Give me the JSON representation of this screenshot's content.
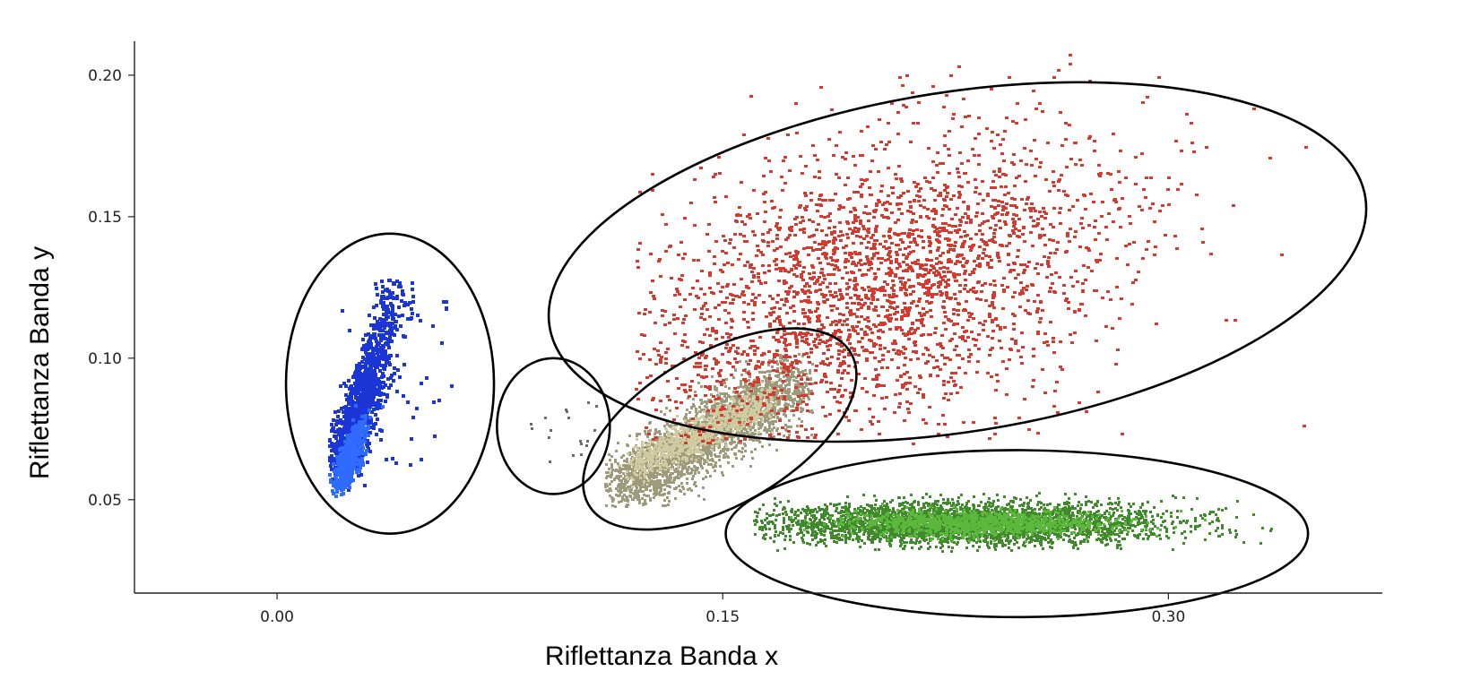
{
  "chart_data": {
    "type": "scatter",
    "title": "",
    "xlabel": "Riflettanza Banda x",
    "ylabel": "Riflettanza Banda y",
    "xlim": [
      -0.048,
      0.372
    ],
    "ylim": [
      0.017,
      0.212
    ],
    "x_ticks": [
      {
        "value": 0.0,
        "label": "0.00"
      },
      {
        "value": 0.15,
        "label": "0.15"
      },
      {
        "value": 0.3,
        "label": "0.30"
      }
    ],
    "y_ticks": [
      {
        "value": 0.05,
        "label": "0.05"
      },
      {
        "value": 0.1,
        "label": "0.10"
      },
      {
        "value": 0.15,
        "label": "0.15"
      },
      {
        "value": 0.2,
        "label": "0.20"
      }
    ],
    "grid": false,
    "legend": "none",
    "series": [
      {
        "color": "#1c36d6",
        "core_color": "#2f6bff",
        "approx_center": [
          0.028,
          0.082
        ],
        "x_range": [
          0.017,
          0.063
        ],
        "y_range": [
          0.051,
          0.129
        ],
        "approx_points": 1400
      },
      {
        "color": "#6a6a6a",
        "approx_center": [
          0.092,
          0.079
        ],
        "x_range": [
          0.085,
          0.108
        ],
        "y_range": [
          0.062,
          0.088
        ],
        "approx_points": 18
      },
      {
        "color": "#9e9a7c",
        "core_color": "#cfcaa0",
        "approx_center": [
          0.135,
          0.075
        ],
        "x_range": [
          0.11,
          0.18
        ],
        "y_range": [
          0.048,
          0.102
        ],
        "approx_points": 2600
      },
      {
        "color": "#d63a2e",
        "approx_center": [
          0.2,
          0.125
        ],
        "x_range": [
          0.12,
          0.36
        ],
        "y_range": [
          0.07,
          0.211
        ],
        "approx_points": 2800
      },
      {
        "color": "#3f8a2a",
        "core_color": "#5cb83c",
        "approx_center": [
          0.23,
          0.042
        ],
        "x_range": [
          0.16,
          0.335
        ],
        "y_range": [
          0.032,
          0.053
        ],
        "approx_points": 3200
      }
    ],
    "annotations": [
      {
        "shape": "ellipse",
        "cx": 0.038,
        "cy": 0.091,
        "rx": 0.035,
        "ry": 0.053,
        "rotate_deg": 0
      },
      {
        "shape": "ellipse",
        "cx": 0.093,
        "cy": 0.076,
        "rx": 0.019,
        "ry": 0.024,
        "rotate_deg": 0
      },
      {
        "shape": "ellipse",
        "cx": 0.149,
        "cy": 0.075,
        "rx": 0.051,
        "ry": 0.027,
        "rotate_deg": -30
      },
      {
        "shape": "ellipse",
        "cx": 0.229,
        "cy": 0.134,
        "rx": 0.139,
        "ry": 0.06,
        "rotate_deg": -9
      },
      {
        "shape": "ellipse",
        "cx": 0.249,
        "cy": 0.038,
        "rx": 0.098,
        "ry": 0.0295,
        "rotate_deg": 0
      }
    ]
  }
}
